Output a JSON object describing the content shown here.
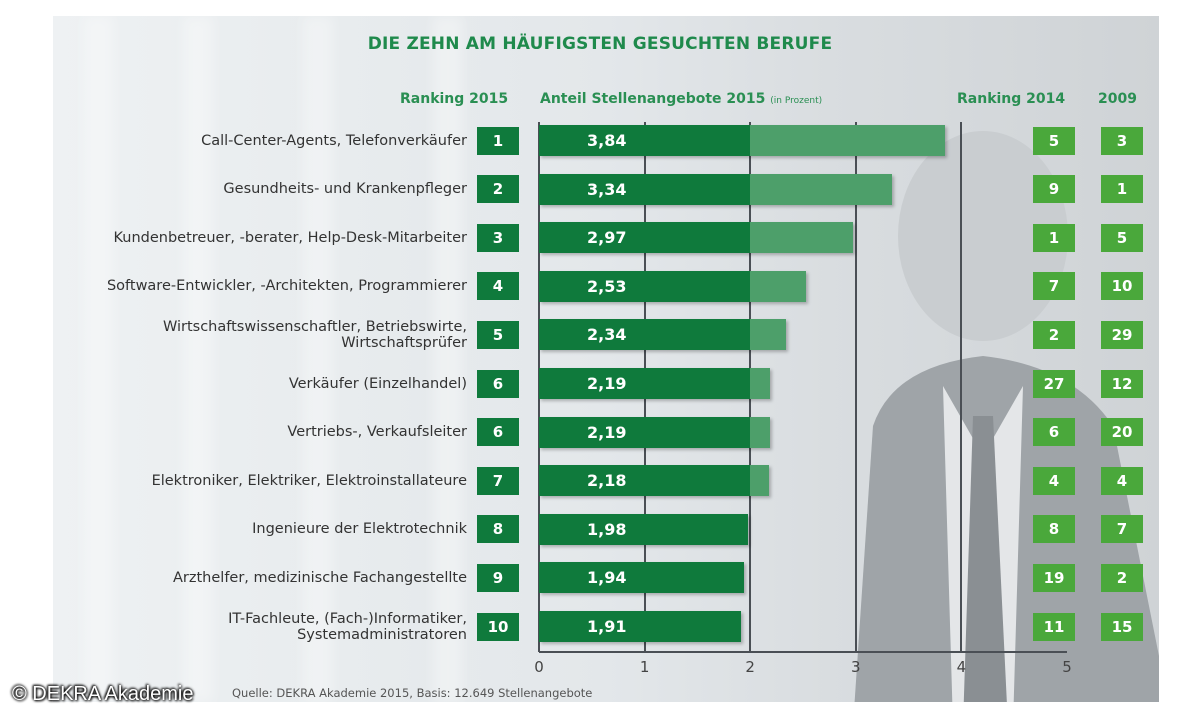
{
  "chart_data": {
    "type": "bar",
    "orientation": "horizontal",
    "title": "DIE ZEHN AM HÄUFIGSTEN GESUCHTEN BERUFE",
    "columns": {
      "ranking_2015": "Ranking 2015",
      "share": "Anteil Stellenangebote 2015",
      "share_unit": "(in Prozent)",
      "ranking_2014": "Ranking 2014",
      "year_2009": "2009"
    },
    "categories": [
      "Call-Center-Agents, Telefonverkäufer",
      "Gesundheits- und Krankenpfleger",
      "Kundenbetreuer, -berater, Help-Desk-Mitarbeiter",
      "Software-Entwickler, -Architekten, Programmierer",
      "Wirtschaftswissenschaftler, Betriebswirte, Wirtschaftsprüfer",
      "Verkäufer (Einzelhandel)",
      "Vertriebs-, Verkaufsleiter",
      "Elektroniker, Elektriker, Elektroinstallateure",
      "Ingenieure der Elektrotechnik",
      "Arzthelfer, medizinische Fachangestellte",
      "IT-Fachleute, (Fach-)Informatiker, Systemadministratoren"
    ],
    "category_lines": [
      [
        "Call-Center-Agents, Telefonverkäufer"
      ],
      [
        "Gesundheits- und Krankenpfleger"
      ],
      [
        "Kundenbetreuer, -berater, Help-Desk-Mitarbeiter"
      ],
      [
        "Software-Entwickler, -Architekten, Programmierer"
      ],
      [
        "Wirtschaftswissenschaftler, Betriebswirte,",
        "Wirtschaftsprüfer"
      ],
      [
        "Verkäufer (Einzelhandel)"
      ],
      [
        "Vertriebs-, Verkaufsleiter"
      ],
      [
        "Elektroniker, Elektriker, Elektroinstallateure"
      ],
      [
        "Ingenieure der Elektrotechnik"
      ],
      [
        "Arzthelfer, medizinische Fachangestellte"
      ],
      [
        "IT-Fachleute, (Fach-)Informatiker,",
        "Systemadministratoren"
      ]
    ],
    "values": [
      3.84,
      3.34,
      2.97,
      2.53,
      2.34,
      2.19,
      2.19,
      2.18,
      1.98,
      1.94,
      1.91
    ],
    "value_labels": [
      "3,84",
      "3,34",
      "2,97",
      "2,53",
      "2,34",
      "2,19",
      "2,19",
      "2,18",
      "1,98",
      "1,94",
      "1,91"
    ],
    "ranking_2015": [
      "1",
      "2",
      "3",
      "4",
      "5",
      "6",
      "6",
      "7",
      "8",
      "9",
      "10"
    ],
    "ranking_2014": [
      "5",
      "9",
      "1",
      "7",
      "2",
      "27",
      "6",
      "4",
      "8",
      "19",
      "11"
    ],
    "ranking_2009": [
      "3",
      "1",
      "5",
      "10",
      "29",
      "12",
      "20",
      "4",
      "7",
      "2",
      "15"
    ],
    "xlim": [
      0,
      5
    ],
    "xticks": [
      "0",
      "1",
      "2",
      "3",
      "4",
      "5"
    ],
    "grid": true,
    "xlabel": "",
    "ylabel": "",
    "colors": {
      "bar": "#0f7a3c",
      "bar_light": "#4d9f6a",
      "rank_box": "#0f7a3c",
      "history_box": "#4aa83b",
      "title": "#1f8a4c"
    }
  },
  "source": "Quelle: DEKRA Akademie 2015, Basis: 12.649 Stellenangebote",
  "copyright": "© DEKRA Akademie"
}
